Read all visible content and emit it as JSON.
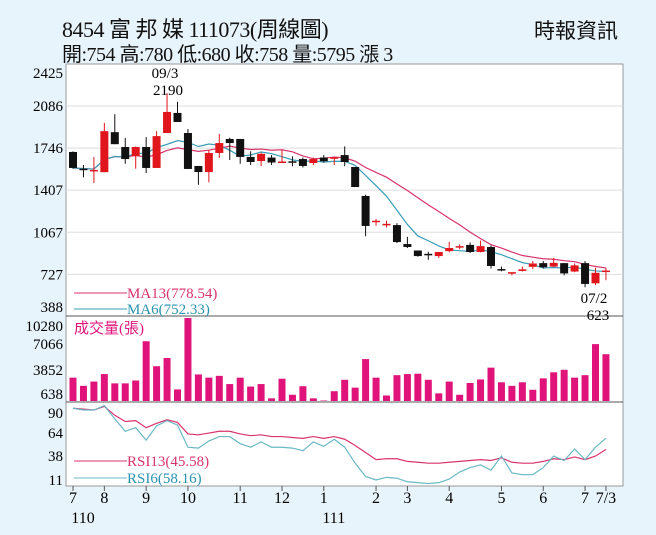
{
  "header": {
    "title": "8454  富 邦 媒 111073(周線圖)",
    "summary": "開:754 高:780 低:680 收:758 量:5795 漲 3",
    "source": "時報資訊"
  },
  "chart_data": {
    "type": "candlestick",
    "title": "8454 富邦媒 週線圖",
    "price_ticks": [
      2425,
      2086,
      1746,
      1407,
      1067,
      727,
      388
    ],
    "volume_ticks": [
      10280,
      7066,
      3852,
      638
    ],
    "rsi_ticks": [
      90,
      64,
      38,
      11
    ],
    "volume_label": "成交量(張)",
    "annotations": {
      "high": {
        "date": "09/3",
        "value": "2190"
      },
      "low": {
        "date": "07/2",
        "value": "623"
      }
    },
    "legend": {
      "ma13": "MA13(778.54)",
      "ma6": "MA6(752.33)",
      "rsi13": "RSI13(45.58)",
      "rsi6": "RSI6(58.16)"
    },
    "colors": {
      "up": "#e0161c",
      "down": "#111111",
      "ma13": "#d9336b",
      "ma6": "#3a9db8",
      "volume": "#e0137a",
      "rsi13": "#d9336b",
      "rsi6": "#6ab8c4"
    },
    "x_labels": [
      {
        "label": "7",
        "i": 0
      },
      {
        "label": "8",
        "i": 3
      },
      {
        "label": "9",
        "i": 7
      },
      {
        "label": "10",
        "i": 11
      },
      {
        "label": "11",
        "i": 16
      },
      {
        "label": "12",
        "i": 20
      },
      {
        "label": "1",
        "i": 24
      },
      {
        "label": "2",
        "i": 29
      },
      {
        "label": "3",
        "i": 32
      },
      {
        "label": "4",
        "i": 36
      },
      {
        "label": "5",
        "i": 41
      },
      {
        "label": "6",
        "i": 45
      },
      {
        "label": "7",
        "i": 49
      },
      {
        "label": "7/3",
        "i": 51
      }
    ],
    "year_labels": [
      {
        "label": "110",
        "i": 0
      },
      {
        "label": "111",
        "i": 24
      }
    ],
    "ohlc": [
      [
        1715,
        1720,
        1580,
        1586
      ],
      [
        1580,
        1610,
        1510,
        1575
      ],
      [
        1565,
        1674,
        1465,
        1570
      ],
      [
        1552,
        1950,
        1552,
        1883
      ],
      [
        1875,
        2020,
        1778,
        1778
      ],
      [
        1755,
        1827,
        1620,
        1658
      ],
      [
        1682,
        1760,
        1580,
        1755
      ],
      [
        1755,
        1835,
        1545,
        1586
      ],
      [
        1586,
        1883,
        1586,
        1843
      ],
      [
        1868,
        2190,
        1868,
        2038
      ],
      [
        2030,
        2120,
        1957,
        1957
      ],
      [
        1868,
        1900,
        1578,
        1578
      ],
      [
        1602,
        1602,
        1450,
        1553
      ],
      [
        1553,
        1730,
        1470,
        1707
      ],
      [
        1707,
        1860,
        1666,
        1787
      ],
      [
        1820,
        1830,
        1650,
        1787
      ],
      [
        1820,
        1820,
        1620,
        1675
      ],
      [
        1675,
        1720,
        1610,
        1634
      ],
      [
        1642,
        1710,
        1600,
        1700
      ],
      [
        1670,
        1690,
        1610,
        1630
      ],
      [
        1630,
        1730,
        1630,
        1638
      ],
      [
        1640,
        1680,
        1600,
        1630
      ],
      [
        1658,
        1670,
        1590,
        1602
      ],
      [
        1626,
        1670,
        1610,
        1658
      ],
      [
        1670,
        1690,
        1630,
        1640
      ],
      [
        1660,
        1675,
        1610,
        1672
      ],
      [
        1690,
        1760,
        1600,
        1634
      ],
      [
        1594,
        1594,
        1432,
        1432
      ],
      [
        1360,
        1370,
        1035,
        1118
      ],
      [
        1150,
        1175,
        1120,
        1160
      ],
      [
        1130,
        1160,
        1105,
        1135
      ],
      [
        1125,
        1140,
        980,
        988
      ],
      [
        972,
        1030,
        940,
        948
      ],
      [
        920,
        920,
        870,
        875
      ],
      [
        893,
        910,
        845,
        885
      ],
      [
        875,
        908,
        860,
        908
      ],
      [
        915,
        990,
        905,
        940
      ],
      [
        955,
        970,
        930,
        955
      ],
      [
        965,
        985,
        900,
        908
      ],
      [
        908,
        1000,
        905,
        955
      ],
      [
        948,
        960,
        775,
        795
      ],
      [
        770,
        790,
        752,
        762
      ],
      [
        745,
        745,
        720,
        745
      ],
      [
        755,
        790,
        750,
        768
      ],
      [
        788,
        835,
        770,
        815
      ],
      [
        818,
        835,
        775,
        785
      ],
      [
        790,
        860,
        785,
        820
      ],
      [
        818,
        818,
        720,
        735
      ],
      [
        750,
        815,
        745,
        800
      ],
      [
        818,
        835,
        623,
        650
      ],
      [
        655,
        780,
        640,
        740
      ],
      [
        754,
        780,
        680,
        758
      ]
    ],
    "volume": [
      2892,
      1876,
      2406,
      3334,
      2185,
      2185,
      2539,
      7401,
      4307,
      5323,
      1434,
      10280,
      3290,
      2892,
      3113,
      2097,
      2892,
      1787,
      2097,
      329,
      2760,
      771,
      1831,
      329,
      60,
      1213,
      2627,
      1655,
      5191,
      2892,
      682,
      3201,
      3334,
      3378,
      2627,
      947,
      2406,
      771,
      2229,
      2671,
      4130,
      2318,
      1876,
      2318,
      1389,
      2804,
      3555,
      3865,
      2892,
      3201,
      7047,
      5795
    ],
    "rsi13": [
      92,
      91,
      90,
      94,
      84,
      77,
      78,
      70,
      75,
      79,
      76,
      63,
      62,
      64,
      66,
      66,
      63,
      61,
      62,
      60,
      60,
      59,
      58,
      60,
      58,
      60,
      57,
      50,
      42,
      34,
      35,
      35,
      32,
      31,
      30,
      30,
      31,
      32,
      33,
      34,
      33,
      36,
      31,
      30,
      30,
      32,
      35,
      34,
      37,
      34,
      38,
      45.58
    ],
    "rsi6": [
      92,
      90,
      90,
      95,
      80,
      66,
      70,
      56,
      72,
      78,
      73,
      48,
      47,
      55,
      60,
      60,
      52,
      48,
      54,
      48,
      48,
      47,
      44,
      54,
      49,
      57,
      48,
      30,
      15,
      11,
      14,
      13,
      9,
      8,
      7,
      8,
      12,
      20,
      25,
      28,
      22,
      38,
      19,
      17,
      17,
      25,
      38,
      33,
      46,
      34,
      48,
      58.16
    ]
  }
}
